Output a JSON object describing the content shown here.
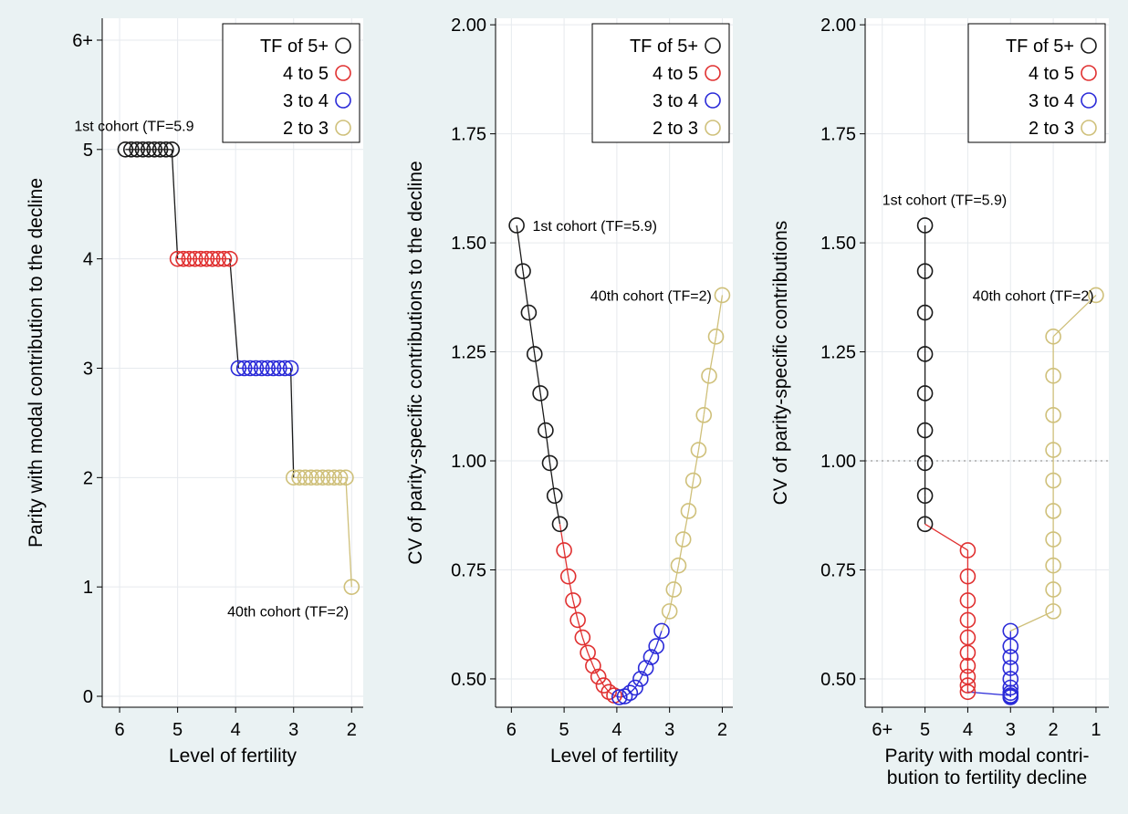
{
  "chart_data": [
    {
      "type": "scatter",
      "xlabel": "Level of fertility",
      "ylabel": "Parity with modal contribution to the decline",
      "x_reversed": true,
      "xlim": [
        6.3,
        1.8
      ],
      "ylim": [
        -0.1,
        6.2
      ],
      "x_ticks": [
        {
          "v": 6,
          "label": "6"
        },
        {
          "v": 5,
          "label": "5"
        },
        {
          "v": 4,
          "label": "4"
        },
        {
          "v": 3,
          "label": "3"
        },
        {
          "v": 2,
          "label": "2"
        }
      ],
      "y_ticks": [
        {
          "v": 0,
          "label": "0"
        },
        {
          "v": 1,
          "label": "1"
        },
        {
          "v": 2,
          "label": "2"
        },
        {
          "v": 3,
          "label": "3"
        },
        {
          "v": 4,
          "label": "4"
        },
        {
          "v": 5,
          "label": "5"
        },
        {
          "v": 6,
          "label": "6+"
        }
      ],
      "grid": true,
      "legend_placement": "top-right",
      "connect_points": true,
      "series": [
        {
          "name": "TF of 5+",
          "color": "#1a1a1a",
          "points": [
            [
              5.9,
              5
            ],
            [
              5.8,
              5
            ],
            [
              5.7,
              5
            ],
            [
              5.6,
              5
            ],
            [
              5.5,
              5
            ],
            [
              5.4,
              5
            ],
            [
              5.3,
              5
            ],
            [
              5.2,
              5
            ],
            [
              5.1,
              5
            ]
          ]
        },
        {
          "name": "4 to 5",
          "color": "#e03030",
          "points": [
            [
              5.0,
              4
            ],
            [
              4.9,
              4
            ],
            [
              4.8,
              4
            ],
            [
              4.7,
              4
            ],
            [
              4.6,
              4
            ],
            [
              4.5,
              4
            ],
            [
              4.4,
              4
            ],
            [
              4.3,
              4
            ],
            [
              4.2,
              4
            ],
            [
              4.1,
              4
            ]
          ]
        },
        {
          "name": "3 to 4",
          "color": "#2a2ad8",
          "points": [
            [
              3.95,
              3
            ],
            [
              3.85,
              3
            ],
            [
              3.75,
              3
            ],
            [
              3.65,
              3
            ],
            [
              3.55,
              3
            ],
            [
              3.45,
              3
            ],
            [
              3.35,
              3
            ],
            [
              3.25,
              3
            ],
            [
              3.15,
              3
            ],
            [
              3.05,
              3
            ]
          ]
        },
        {
          "name": "2 to 3",
          "color": "#cfc07a",
          "points": [
            [
              3.0,
              2
            ],
            [
              2.9,
              2
            ],
            [
              2.8,
              2
            ],
            [
              2.7,
              2
            ],
            [
              2.6,
              2
            ],
            [
              2.5,
              2
            ],
            [
              2.4,
              2
            ],
            [
              2.3,
              2
            ],
            [
              2.2,
              2
            ],
            [
              2.1,
              2
            ],
            [
              2.0,
              1
            ]
          ]
        }
      ],
      "annotations": [
        {
          "text": "1st cohort (TF=5.9",
          "x": 5.75,
          "y": 5.22,
          "anchor": "middle"
        },
        {
          "text": "40th cohort (TF=2)",
          "x": 2.05,
          "y": 0.78,
          "anchor": "end"
        }
      ]
    },
    {
      "type": "scatter",
      "xlabel": "Level of fertility",
      "ylabel": "CV of parity-specific contributions to the decline",
      "x_reversed": true,
      "xlim": [
        6.3,
        1.8
      ],
      "ylim": [
        0.435,
        2.015
      ],
      "x_ticks": [
        {
          "v": 6,
          "label": "6"
        },
        {
          "v": 5,
          "label": "5"
        },
        {
          "v": 4,
          "label": "4"
        },
        {
          "v": 3,
          "label": "3"
        },
        {
          "v": 2,
          "label": "2"
        }
      ],
      "y_ticks": [
        {
          "v": 0.5,
          "label": "0.50"
        },
        {
          "v": 0.75,
          "label": "0.75"
        },
        {
          "v": 1.0,
          "label": "1.00"
        },
        {
          "v": 1.25,
          "label": "1.25"
        },
        {
          "v": 1.5,
          "label": "1.50"
        },
        {
          "v": 1.75,
          "label": "1.75"
        },
        {
          "v": 2.0,
          "label": "2.00"
        }
      ],
      "grid": true,
      "legend_placement": "top-right",
      "connect_points": true,
      "series": [
        {
          "name": "TF of 5+",
          "color": "#1a1a1a",
          "points": [
            [
              5.9,
              1.54
            ],
            [
              5.78,
              1.435
            ],
            [
              5.67,
              1.34
            ],
            [
              5.56,
              1.245
            ],
            [
              5.45,
              1.155
            ],
            [
              5.35,
              1.07
            ],
            [
              5.27,
              0.995
            ],
            [
              5.18,
              0.92
            ],
            [
              5.08,
              0.855
            ]
          ]
        },
        {
          "name": "4 to 5",
          "color": "#e03030",
          "points": [
            [
              5.0,
              0.795
            ],
            [
              4.92,
              0.735
            ],
            [
              4.83,
              0.68
            ],
            [
              4.74,
              0.635
            ],
            [
              4.65,
              0.595
            ],
            [
              4.55,
              0.56
            ],
            [
              4.45,
              0.53
            ],
            [
              4.35,
              0.505
            ],
            [
              4.25,
              0.485
            ],
            [
              4.15,
              0.47
            ],
            [
              4.05,
              0.462
            ]
          ]
        },
        {
          "name": "3 to 4",
          "color": "#2a2ad8",
          "points": [
            [
              3.95,
              0.458
            ],
            [
              3.85,
              0.46
            ],
            [
              3.75,
              0.468
            ],
            [
              3.65,
              0.48
            ],
            [
              3.55,
              0.5
            ],
            [
              3.45,
              0.525
            ],
            [
              3.35,
              0.55
            ],
            [
              3.25,
              0.575
            ],
            [
              3.15,
              0.61
            ]
          ]
        },
        {
          "name": "2 to 3",
          "color": "#cfc07a",
          "points": [
            [
              3.0,
              0.655
            ],
            [
              2.92,
              0.705
            ],
            [
              2.83,
              0.76
            ],
            [
              2.74,
              0.82
            ],
            [
              2.64,
              0.885
            ],
            [
              2.55,
              0.955
            ],
            [
              2.45,
              1.025
            ],
            [
              2.35,
              1.105
            ],
            [
              2.25,
              1.195
            ],
            [
              2.12,
              1.285
            ],
            [
              2.0,
              1.38
            ]
          ]
        }
      ],
      "annotations": [
        {
          "text": "1st cohort (TF=5.9)",
          "x": 5.6,
          "y": 1.54,
          "anchor": "start"
        },
        {
          "text": "40th cohort (TF=2)",
          "x": 2.2,
          "y": 1.38,
          "anchor": "end"
        }
      ]
    },
    {
      "type": "scatter",
      "xlabel": "Parity with modal contri-\nbution to fertility decline",
      "ylabel": "CV of parity-specific contributions",
      "x_reversed": true,
      "xlim": [
        6.4,
        0.7
      ],
      "ylim": [
        0.435,
        2.015
      ],
      "x_ticks": [
        {
          "v": 6,
          "label": "6+"
        },
        {
          "v": 5,
          "label": "5"
        },
        {
          "v": 4,
          "label": "4"
        },
        {
          "v": 3,
          "label": "3"
        },
        {
          "v": 2,
          "label": "2"
        },
        {
          "v": 1,
          "label": "1"
        }
      ],
      "y_ticks": [
        {
          "v": 0.5,
          "label": "0.50"
        },
        {
          "v": 0.75,
          "label": "0.75"
        },
        {
          "v": 1.0,
          "label": "1.00"
        },
        {
          "v": 1.25,
          "label": "1.25"
        },
        {
          "v": 1.5,
          "label": "1.50"
        },
        {
          "v": 1.75,
          "label": "1.75"
        },
        {
          "v": 2.0,
          "label": "2.00"
        }
      ],
      "grid": true,
      "reference_line_y": 1.0,
      "legend_placement": "top-right",
      "connect_points": true,
      "series": [
        {
          "name": "TF of 5+",
          "color": "#1a1a1a",
          "points": [
            [
              5,
              1.54
            ],
            [
              5,
              1.435
            ],
            [
              5,
              1.34
            ],
            [
              5,
              1.245
            ],
            [
              5,
              1.155
            ],
            [
              5,
              1.07
            ],
            [
              5,
              0.995
            ],
            [
              5,
              0.92
            ],
            [
              5,
              0.855
            ]
          ]
        },
        {
          "name": "4 to 5",
          "color": "#e03030",
          "points": [
            [
              4,
              0.795
            ],
            [
              4,
              0.735
            ],
            [
              4,
              0.68
            ],
            [
              4,
              0.635
            ],
            [
              4,
              0.595
            ],
            [
              4,
              0.56
            ],
            [
              4,
              0.53
            ],
            [
              4,
              0.505
            ],
            [
              4,
              0.485
            ],
            [
              4,
              0.47
            ]
          ]
        },
        {
          "name": "3 to 4",
          "color": "#2a2ad8",
          "points": [
            [
              3,
              0.462
            ],
            [
              3,
              0.458
            ],
            [
              3,
              0.46
            ],
            [
              3,
              0.468
            ],
            [
              3,
              0.48
            ],
            [
              3,
              0.5
            ],
            [
              3,
              0.525
            ],
            [
              3,
              0.55
            ],
            [
              3,
              0.575
            ],
            [
              3,
              0.61
            ]
          ]
        },
        {
          "name": "2 to 3",
          "color": "#cfc07a",
          "points": [
            [
              2,
              0.655
            ],
            [
              2,
              0.705
            ],
            [
              2,
              0.76
            ],
            [
              2,
              0.82
            ],
            [
              2,
              0.885
            ],
            [
              2,
              0.955
            ],
            [
              2,
              1.025
            ],
            [
              2,
              1.105
            ],
            [
              2,
              1.195
            ],
            [
              2,
              1.285
            ],
            [
              1,
              1.38
            ]
          ]
        }
      ],
      "annotations": [
        {
          "text": "1st cohort (TF=5.9)",
          "x": 6.0,
          "y": 1.6,
          "anchor": "start"
        },
        {
          "text": "40th cohort (TF=2)",
          "x": 1.05,
          "y": 1.38,
          "anchor": "end"
        }
      ]
    }
  ]
}
